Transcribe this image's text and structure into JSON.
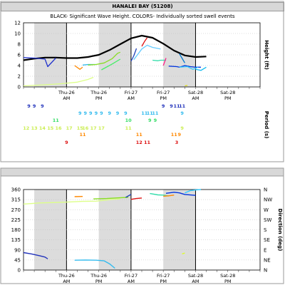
{
  "page": {
    "title": "HANALEI BAY (51208)",
    "subtitle": "BLACK- Significant Wave Height.  COLORS- Individually sorted swell events"
  },
  "chart_data": [
    {
      "type": "line",
      "name": "height",
      "ylabel": "Height (ft)",
      "ylim": [
        0,
        12
      ],
      "yticks": [
        "0",
        "2",
        "4",
        "6",
        "8",
        "10",
        "12"
      ],
      "xlim": [
        0,
        64
      ],
      "day_boundaries": [
        16,
        40,
        64
      ],
      "shaded": [
        [
          4,
          16
        ],
        [
          28,
          40
        ],
        [
          52,
          64
        ]
      ],
      "x_tick_labels": [
        {
          "x": 16,
          "label": "Thu-26",
          "sub": "AM"
        },
        {
          "x": 28,
          "label": "Thu-26",
          "sub": "PM"
        },
        {
          "x": 40,
          "label": "Fri-27",
          "sub": "AM"
        },
        {
          "x": 52,
          "label": "Fri-27",
          "sub": "PM"
        },
        {
          "x": 64,
          "label": "Sat-28",
          "sub": "AM"
        },
        {
          "x": 76,
          "label": "Sat-28",
          "sub": "PM"
        }
      ],
      "series": [
        {
          "color": "#000000",
          "width": 2.2,
          "x": [
            0,
            4,
            8,
            12,
            16,
            20,
            24,
            28,
            32,
            36,
            40,
            44,
            48,
            52,
            56,
            60,
            64,
            68
          ],
          "y": [
            5,
            5.3,
            5.5,
            5.5,
            5.4,
            5.4,
            5.6,
            6,
            6.9,
            8,
            9.1,
            9.6,
            9.2,
            8.1,
            6.8,
            5.9,
            5.6,
            5.7
          ]
        },
        {
          "color": "#2233cc",
          "width": 1.3,
          "x": [
            0,
            4,
            8,
            9,
            12
          ],
          "y": [
            5.5,
            5.4,
            5.2,
            3.8,
            5.4
          ]
        },
        {
          "color": "#ff8800",
          "width": 1.3,
          "x": [
            19,
            21,
            22
          ],
          "y": [
            4,
            3.3,
            3.7
          ]
        },
        {
          "color": "#33bbee",
          "width": 1.3,
          "x": [
            22,
            24,
            27
          ],
          "y": [
            4.1,
            4.2,
            4.2
          ]
        },
        {
          "color": "#88dd22",
          "width": 1.3,
          "x": [
            24,
            27,
            30,
            33,
            35,
            36
          ],
          "y": [
            4.1,
            4.2,
            4.5,
            5.3,
            6.3,
            6.5
          ]
        },
        {
          "color": "#ddff88",
          "width": 1.3,
          "x": [
            0,
            8,
            14,
            20,
            24,
            26
          ],
          "y": [
            0.2,
            0.4,
            0.6,
            0.9,
            1.4,
            1.8
          ]
        },
        {
          "color": "#44ee66",
          "width": 1.3,
          "x": [
            29,
            33,
            36
          ],
          "y": [
            3.2,
            4.3,
            5.2
          ]
        },
        {
          "color": "#66ccff",
          "width": 1.3,
          "x": [
            41,
            44,
            46,
            48,
            51
          ],
          "y": [
            5.1,
            7.1,
            7.8,
            7.4,
            7.1
          ]
        },
        {
          "color": "#2244bb",
          "width": 1.3,
          "x": [
            40,
            41,
            42
          ],
          "y": [
            4.8,
            5.8,
            7.2
          ]
        },
        {
          "color": "#dd1111",
          "width": 1.3,
          "x": [
            44,
            45,
            46
          ],
          "y": [
            7.6,
            8.5,
            9.2
          ]
        },
        {
          "color": "#33ddaa",
          "width": 1.3,
          "x": [
            48,
            50,
            51,
            53
          ],
          "y": [
            5,
            4.9,
            5,
            5
          ]
        },
        {
          "color": "#0033dd",
          "width": 1.3,
          "x": [
            54,
            57,
            58,
            60,
            62,
            64,
            66
          ],
          "y": [
            3.9,
            3.8,
            3.7,
            4,
            3.8,
            3.7,
            3.7
          ]
        },
        {
          "color": "#0077cc",
          "width": 1.3,
          "x": [
            58,
            60
          ],
          "y": [
            6.2,
            4.5
          ]
        },
        {
          "color": "#33ccff",
          "width": 1.3,
          "x": [
            58,
            61,
            63,
            65
          ],
          "y": [
            3.7,
            3.8,
            3.3,
            3.7
          ]
        },
        {
          "color": "#11bbee",
          "width": 1.3,
          "x": [
            64,
            66,
            68
          ],
          "y": [
            3.3,
            3.1,
            3.7
          ]
        },
        {
          "color": "#ff2288",
          "width": 1.3,
          "x": [
            52,
            53
          ],
          "y": [
            4,
            5.4
          ]
        },
        {
          "color": "#dddd22",
          "width": 1.3,
          "x": [
            60,
            61
          ],
          "y": [
            0.2,
            0.3
          ]
        }
      ]
    },
    {
      "type": "table",
      "name": "period",
      "ylabel": "Period (s)",
      "rows": [
        {
          "color": "#2233bb",
          "cells": [
            {
              "x": 2,
              "t": "9"
            },
            {
              "x": 4,
              "t": "9"
            },
            {
              "x": 7,
              "t": "9"
            },
            {
              "x": 52,
              "t": "9"
            },
            {
              "x": 55,
              "t": "9"
            },
            {
              "x": 57,
              "t": "11"
            },
            {
              "x": 59,
              "t": "11"
            }
          ]
        },
        {
          "color": "#33bbee",
          "cells": [
            {
              "x": 21,
              "t": "9"
            },
            {
              "x": 23,
              "t": "9"
            },
            {
              "x": 25,
              "t": "9"
            },
            {
              "x": 27,
              "t": "9"
            },
            {
              "x": 29,
              "t": "9"
            },
            {
              "x": 32,
              "t": "9"
            },
            {
              "x": 35,
              "t": "9"
            },
            {
              "x": 38,
              "t": "9"
            },
            {
              "x": 45,
              "t": "11"
            },
            {
              "x": 47,
              "t": "11"
            },
            {
              "x": 49,
              "t": "11"
            },
            {
              "x": 59,
              "t": "9"
            }
          ]
        },
        {
          "color": "#33dd66",
          "cells": [
            {
              "x": 12,
              "t": "11"
            },
            {
              "x": 39,
              "t": "10"
            },
            {
              "x": 47,
              "t": "9"
            },
            {
              "x": 49,
              "t": "9"
            }
          ]
        },
        {
          "color": "#ccee55",
          "cells": [
            {
              "x": 1,
              "t": "12"
            },
            {
              "x": 4,
              "t": "13"
            },
            {
              "x": 7,
              "t": "14"
            },
            {
              "x": 10,
              "t": "15"
            },
            {
              "x": 13,
              "t": "16"
            },
            {
              "x": 17,
              "t": "17"
            },
            {
              "x": 21,
              "t": "15"
            },
            {
              "x": 23,
              "t": "16"
            },
            {
              "x": 26,
              "t": "17"
            },
            {
              "x": 29,
              "t": "17"
            },
            {
              "x": 39,
              "t": "11"
            },
            {
              "x": 59,
              "t": "9"
            }
          ]
        },
        {
          "color": "#ff8800",
          "cells": [
            {
              "x": 22,
              "t": "11"
            },
            {
              "x": 43,
              "t": "11"
            },
            {
              "x": 56,
              "t": "11"
            },
            {
              "x": 58,
              "t": "9"
            }
          ]
        },
        {
          "color": "#dd1111",
          "cells": [
            {
              "x": 16,
              "t": "9"
            },
            {
              "x": 43,
              "t": "12"
            },
            {
              "x": 46,
              "t": "11"
            },
            {
              "x": 57,
              "t": "3"
            }
          ]
        }
      ]
    },
    {
      "type": "scatter",
      "name": "direction",
      "ylabel": "Direction (deg)",
      "ylim": [
        0,
        360
      ],
      "yticks": [
        "0",
        "45",
        "90",
        "135",
        "180",
        "225",
        "270",
        "315",
        "360"
      ],
      "compass": [
        "N",
        "NE",
        "E",
        "SE",
        "S",
        "SW",
        "W",
        "NW",
        "N"
      ],
      "series": [
        {
          "color": "#ddff88",
          "x": [
            0,
            6,
            12,
            18,
            22,
            27,
            30,
            33,
            36
          ],
          "y": [
            295,
            300,
            302,
            305,
            307,
            308,
            312,
            316,
            318
          ]
        },
        {
          "color": "#ff8800",
          "x": [
            19,
            22
          ],
          "y": [
            328,
            329
          ]
        },
        {
          "color": "#88dd22",
          "x": [
            26,
            31,
            34,
            37,
            39
          ],
          "y": [
            318,
            320,
            322,
            324,
            325
          ]
        },
        {
          "color": "#2233bb",
          "x": [
            0,
            3,
            6,
            8,
            9
          ],
          "y": [
            78,
            72,
            64,
            58,
            50
          ]
        },
        {
          "color": "#33bbee",
          "x": [
            19,
            23,
            27,
            30,
            32,
            34
          ],
          "y": [
            44,
            45,
            44,
            41,
            28,
            8
          ]
        },
        {
          "color": "#dd1111",
          "x": [
            40,
            42,
            44
          ],
          "y": [
            316,
            320,
            322
          ]
        },
        {
          "color": "#2244bb",
          "x": [
            38,
            40
          ],
          "y": [
            325,
            338
          ]
        },
        {
          "color": "#33ddaa",
          "x": [
            47,
            50,
            52,
            54
          ],
          "y": [
            342,
            336,
            335,
            331
          ]
        },
        {
          "color": "#ff8800",
          "x": [
            52,
            54,
            56
          ],
          "y": [
            330,
            332,
            335
          ]
        },
        {
          "color": "#0033dd",
          "x": [
            53,
            56,
            58,
            60,
            64
          ],
          "y": [
            343,
            348,
            345,
            338,
            334
          ]
        },
        {
          "color": "#33ccff",
          "x": [
            60,
            62,
            64,
            66
          ],
          "y": [
            345,
            355,
            358,
            360
          ]
        },
        {
          "color": "#ddff22",
          "x": [
            59,
            60
          ],
          "y": [
            72,
            76
          ]
        }
      ]
    }
  ]
}
